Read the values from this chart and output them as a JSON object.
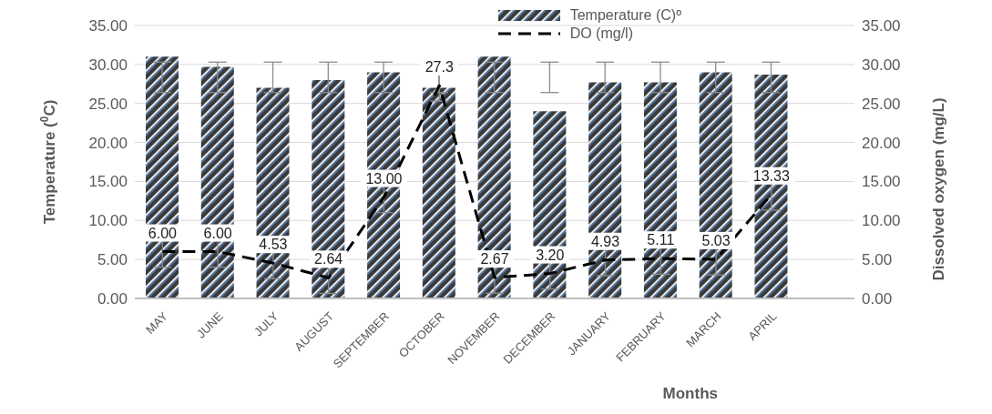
{
  "chart_data": {
    "type": "bar",
    "xlabel": "Months",
    "ylabel": "Temperature ($^{0}$C)",
    "y2label": "Dissolved oxygen (mg/L)",
    "categories": [
      "MAY",
      "JUNE",
      "JULY",
      "AUGUST",
      "SEPTEMBER",
      "OCTOBER",
      "NOVEMBER",
      "DECEMBER",
      "JANUARY",
      "FEBRUARY",
      "MARCH",
      "APRIL",
      null
    ],
    "series": [
      {
        "name": "Temperature (C)º",
        "color": "#4f6f99",
        "values": [
          31.0,
          29.7,
          27.0,
          28.0,
          29.0,
          27.0,
          31.0,
          24.0,
          27.7,
          27.7,
          29.0,
          28.7,
          null
        ],
        "errors": [
          [
            26.4,
            30.3
          ],
          [
            26.4,
            30.3
          ],
          [
            26.4,
            30.3
          ],
          [
            26.4,
            30.3
          ],
          [
            26.4,
            30.3
          ],
          [
            26.4,
            30.3
          ],
          [
            26.4,
            30.3
          ],
          [
            26.4,
            30.3
          ],
          [
            26.4,
            30.3
          ],
          [
            26.4,
            30.3
          ],
          [
            26.4,
            30.3
          ],
          [
            26.4,
            30.3
          ],
          null
        ]
      },
      {
        "name": "DO (mg/l)",
        "type": "line",
        "axis": "y2",
        "color": "#000000",
        "line_style": "dashed",
        "marker": "none",
        "values": [
          6.0,
          6.0,
          4.53,
          2.64,
          13.0,
          27.3,
          2.67,
          3.2,
          4.93,
          5.11,
          5.03,
          13.33,
          null
        ],
        "errors": [
          2,
          2,
          2,
          2,
          2,
          2,
          2,
          2,
          2,
          2,
          2,
          2,
          null
        ],
        "value_labels": [
          "6.00",
          "6.00",
          "4.53",
          "2.64",
          "13.00",
          "27.3",
          "2.67",
          "3.20",
          "4.93",
          "5.11",
          "5.03",
          "13.33",
          null
        ]
      }
    ],
    "ylim": [
      0,
      35
    ],
    "yticks": [
      {
        "value": 0,
        "label": "0.00"
      },
      {
        "value": 5,
        "label": "5.00"
      },
      {
        "value": 10,
        "label": "10.00"
      },
      {
        "value": 15,
        "label": "15.00"
      },
      {
        "value": 20,
        "label": "20.00"
      },
      {
        "value": 25,
        "label": "25.00"
      },
      {
        "value": 30,
        "label": "30.00"
      },
      {
        "value": 35,
        "label": "35.00"
      }
    ],
    "y2lim": [
      0,
      35
    ],
    "y2ticks": [
      {
        "value": 0,
        "label": "0.00"
      },
      {
        "value": 5,
        "label": "5.00"
      },
      {
        "value": 10,
        "label": "10.00"
      },
      {
        "value": 15,
        "label": "15.00"
      },
      {
        "value": 20,
        "label": "20.00"
      },
      {
        "value": 25,
        "label": "25.00"
      },
      {
        "value": 30,
        "label": "30.00"
      },
      {
        "value": 35,
        "label": "35.00"
      }
    ],
    "grid": "y",
    "legend": "top right"
  }
}
